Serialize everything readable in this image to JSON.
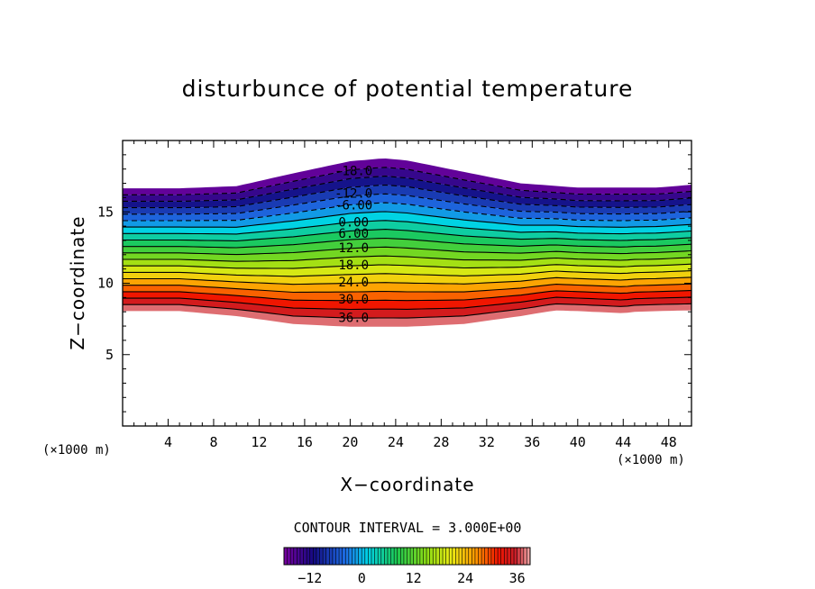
{
  "chart_data": {
    "type": "contour",
    "title": "disturbunce of potential temperature",
    "xlabel": "X−coordinate",
    "ylabel": "Z−coordinate",
    "x_unit_label": "(×1000 m)",
    "y_unit_label": "(×1000 m)",
    "xlim": [
      0,
      50
    ],
    "ylim": [
      0,
      20
    ],
    "x_ticks": [
      4,
      8,
      12,
      16,
      20,
      24,
      28,
      32,
      36,
      40,
      44,
      48
    ],
    "y_ticks": [
      5,
      10,
      15
    ],
    "contour_interval_text": "CONTOUR INTERVAL = 3.000E+00",
    "contour_interval": 3.0,
    "value_range": [
      -18,
      39
    ],
    "field_bottom_z": {
      "x": [
        0,
        3,
        5,
        10,
        15,
        20,
        25,
        30,
        35,
        38,
        40,
        44,
        45,
        47,
        50
      ],
      "z": [
        8.05,
        8.05,
        8.05,
        7.7,
        7.15,
        6.95,
        6.95,
        7.15,
        7.7,
        8.1,
        8.05,
        7.9,
        8.0,
        8.05,
        8.1
      ]
    },
    "field_top_z": {
      "x": [
        0,
        5,
        10,
        15,
        20,
        23,
        25,
        30,
        35,
        40,
        47,
        50
      ],
      "z": [
        16.65,
        16.65,
        16.8,
        17.7,
        18.55,
        18.75,
        18.6,
        17.8,
        17.0,
        16.7,
        16.7,
        16.9
      ]
    },
    "contour_labels": [
      {
        "value": -18,
        "text": "-18.0",
        "x": 20.3,
        "z": 17.9
      },
      {
        "value": -12,
        "text": "-12.0",
        "x": 20.3,
        "z": 16.3
      },
      {
        "value": -6,
        "text": "-6.00",
        "x": 20.3,
        "z": 15.5
      },
      {
        "value": 0,
        "text": "0.00",
        "x": 20.3,
        "z": 14.3
      },
      {
        "value": 6,
        "text": "6.00",
        "x": 20.3,
        "z": 13.5
      },
      {
        "value": 12,
        "text": "12.0",
        "x": 20.3,
        "z": 12.5
      },
      {
        "value": 18,
        "text": "18.0",
        "x": 20.3,
        "z": 11.3
      },
      {
        "value": 24,
        "text": "24.0",
        "x": 20.3,
        "z": 10.1
      },
      {
        "value": 30,
        "text": "30.0",
        "x": 20.3,
        "z": 8.9
      },
      {
        "value": 36,
        "text": "36.0",
        "x": 20.3,
        "z": 7.6
      }
    ],
    "colorbar": {
      "ticks": [
        -12,
        0,
        12,
        24,
        36
      ],
      "range": [
        -18,
        39
      ]
    }
  }
}
